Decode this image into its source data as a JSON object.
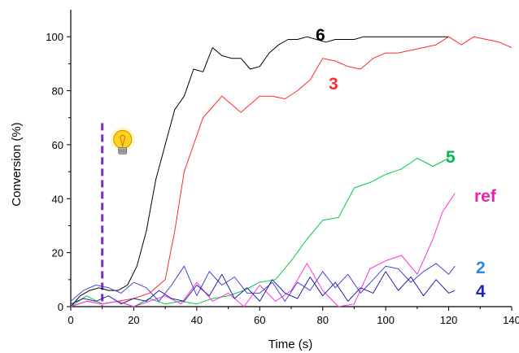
{
  "chart_data": {
    "type": "line",
    "xlabel": "Time (s)",
    "ylabel": "Conversion (%)",
    "xlim": [
      0,
      140
    ],
    "ylim": [
      0,
      110
    ],
    "x_ticks": [
      0,
      20,
      40,
      60,
      80,
      100,
      120,
      140
    ],
    "y_ticks": [
      0,
      20,
      40,
      60,
      80,
      100
    ],
    "grid": false,
    "legend": "inline labels next to series",
    "marker": {
      "type": "dashed-vertical-line",
      "x": 10,
      "y_top": 68,
      "color": "#7a2fbf",
      "icon": "light-bulb-icon"
    },
    "series": [
      {
        "name": "6",
        "color": "#000000",
        "label_color": "#000000",
        "x": [
          0,
          3,
          6,
          9,
          12,
          15,
          18,
          21,
          24,
          27,
          30,
          33,
          36,
          39,
          42,
          45,
          48,
          51,
          54,
          57,
          60,
          63,
          66,
          69,
          72,
          75,
          78,
          81,
          84,
          87,
          90,
          93,
          96,
          99,
          102,
          105,
          108,
          111,
          114,
          117,
          120
        ],
        "y": [
          0,
          4,
          6,
          7,
          6,
          6,
          8,
          15,
          28,
          47,
          60,
          73,
          78,
          88,
          87,
          96,
          93,
          92,
          92,
          88,
          89,
          94,
          97,
          99,
          99,
          100,
          99,
          98,
          99,
          99,
          99,
          100,
          100,
          100,
          100,
          100,
          100,
          100,
          100,
          100,
          100
        ]
      },
      {
        "name": "3",
        "color": "#ff2a2a",
        "label_color": "#ff2a2a",
        "x": [
          0,
          5,
          10,
          15,
          20,
          25,
          30,
          33,
          36,
          39,
          42,
          45,
          48,
          51,
          54,
          57,
          60,
          64,
          68,
          72,
          76,
          80,
          84,
          88,
          92,
          96,
          100,
          104,
          108,
          112,
          116,
          120,
          124,
          128,
          132,
          136,
          140
        ],
        "y": [
          0,
          2,
          1,
          2,
          3,
          5,
          10,
          28,
          50,
          60,
          70,
          74,
          78,
          75,
          72,
          75,
          78,
          78,
          77,
          80,
          84,
          92,
          91,
          89,
          88,
          92,
          94,
          94,
          95,
          96,
          97,
          100,
          97,
          100,
          99,
          98,
          96
        ]
      },
      {
        "name": "5",
        "color": "#00cc44",
        "label_color": "#00bb55",
        "x": [
          0,
          5,
          10,
          15,
          20,
          25,
          30,
          35,
          40,
          45,
          50,
          55,
          60,
          65,
          70,
          75,
          80,
          85,
          90,
          95,
          100,
          105,
          110,
          115,
          120
        ],
        "y": [
          0,
          4,
          1,
          2,
          0,
          3,
          1,
          2,
          1,
          3,
          4,
          6,
          9,
          10,
          17,
          25,
          32,
          33,
          44,
          46,
          49,
          51,
          55,
          52,
          55
        ]
      },
      {
        "name": "ref",
        "color": "#ff33dd",
        "label_color": "#ee22aa",
        "x": [
          0,
          5,
          10,
          15,
          20,
          25,
          30,
          35,
          40,
          45,
          50,
          55,
          60,
          65,
          70,
          75,
          80,
          85,
          90,
          95,
          100,
          105,
          110,
          115,
          118,
          122
        ],
        "y": [
          0,
          2,
          1,
          2,
          0,
          2,
          4,
          1,
          9,
          2,
          5,
          0,
          8,
          2,
          6,
          16,
          6,
          0,
          1,
          14,
          17,
          19,
          12,
          25,
          35,
          42
        ]
      },
      {
        "name": "2",
        "color": "#4444dd",
        "label_color": "#2a8adf",
        "x": [
          0,
          4,
          8,
          12,
          16,
          20,
          24,
          28,
          32,
          36,
          40,
          44,
          48,
          52,
          56,
          60,
          64,
          68,
          72,
          76,
          80,
          84,
          88,
          92,
          96,
          100,
          104,
          108,
          112,
          116,
          120,
          122
        ],
        "y": [
          2,
          6,
          8,
          7,
          5,
          9,
          7,
          2,
          8,
          15,
          4,
          13,
          8,
          11,
          5,
          5,
          9,
          2,
          9,
          6,
          13,
          7,
          12,
          5,
          10,
          15,
          14,
          9,
          13,
          16,
          12,
          15
        ]
      },
      {
        "name": "4",
        "color": "#2222aa",
        "label_color": "#2222bb",
        "x": [
          0,
          4,
          8,
          12,
          16,
          20,
          24,
          28,
          32,
          36,
          40,
          44,
          48,
          52,
          56,
          60,
          64,
          68,
          72,
          76,
          80,
          84,
          88,
          92,
          96,
          100,
          104,
          108,
          112,
          116,
          120,
          122
        ],
        "y": [
          1,
          3,
          2,
          4,
          1,
          3,
          2,
          6,
          3,
          2,
          8,
          4,
          12,
          3,
          7,
          2,
          10,
          5,
          3,
          11,
          4,
          9,
          2,
          7,
          5,
          13,
          6,
          11,
          4,
          10,
          5,
          6
        ]
      }
    ]
  }
}
